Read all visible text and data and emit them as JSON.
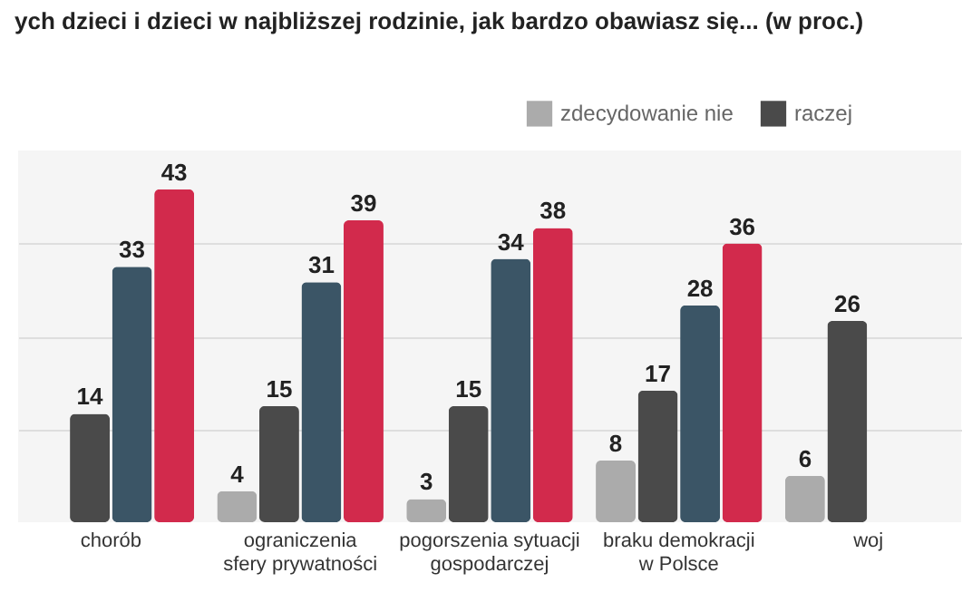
{
  "chart_data": {
    "type": "bar",
    "title": "ych dzieci i dzieci w najbliższej rodzinie, jak bardzo obawiasz się... (w proc.)",
    "categories": [
      "chorób",
      "ograniczenia sfery prywatności",
      "pogorszenia sytuacji gospodarczej",
      "braku demokracji w Polsce",
      "woj"
    ],
    "series": [
      {
        "name": "zdecydowanie nie",
        "color": "#ababab",
        "values": [
          null,
          4,
          3,
          8,
          6
        ]
      },
      {
        "name": "raczej",
        "color": "#4a4a4a",
        "values": [
          14,
          15,
          15,
          17,
          26
        ]
      },
      {
        "color": "#3b5566",
        "values": [
          33,
          31,
          34,
          28,
          null
        ]
      },
      {
        "color": "#d22a4c",
        "values": [
          43,
          39,
          38,
          36,
          null
        ]
      }
    ],
    "ylim": [
      0,
      48
    ],
    "yticks": [
      {
        "value": 12,
        "label": null
      },
      {
        "value": 24,
        "label": null
      },
      {
        "value": 36,
        "label": null
      }
    ],
    "grid": "y",
    "legend": "top right",
    "data_labels": true
  }
}
